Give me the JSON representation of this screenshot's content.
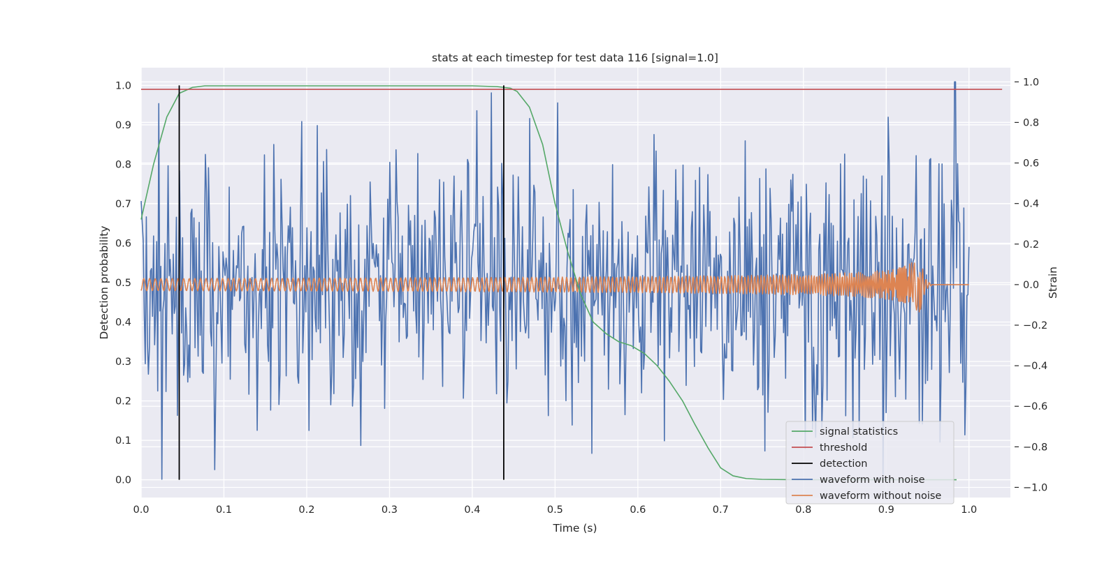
{
  "chart_data": {
    "type": "line",
    "title": "stats at each timestep for test data 116 [signal=1.0]",
    "xlabel": "Time (s)",
    "ylabel_left": "Detection probability",
    "ylabel_right": "Strain",
    "xlim": [
      0.0,
      1.05
    ],
    "ylim_left": [
      -0.045,
      1.045
    ],
    "ylim_right": [
      -1.05,
      1.07
    ],
    "xticks": [
      "0.0",
      "0.1",
      "0.2",
      "0.3",
      "0.4",
      "0.5",
      "0.6",
      "0.7",
      "0.8",
      "0.9",
      "1.0"
    ],
    "yticks_left": [
      "0.0",
      "0.1",
      "0.2",
      "0.3",
      "0.4",
      "0.5",
      "0.6",
      "0.7",
      "0.8",
      "0.9",
      "1.0"
    ],
    "yticks_right": [
      "−1.0",
      "−0.8",
      "−0.6",
      "−0.4",
      "−0.2",
      "0.0",
      "0.2",
      "0.4",
      "0.6",
      "0.8",
      "1.0"
    ],
    "grid": true,
    "legend_position": "lower right",
    "series": [
      {
        "name": "signal statistics",
        "axis": "left",
        "color": "#55a868",
        "x": [
          0.0,
          0.015,
          0.031,
          0.046,
          0.062,
          0.077,
          0.1,
          0.2,
          0.3,
          0.4,
          0.43,
          0.446,
          0.454,
          0.469,
          0.485,
          0.5,
          0.515,
          0.531,
          0.546,
          0.562,
          0.577,
          0.592,
          0.608,
          0.623,
          0.638,
          0.654,
          0.669,
          0.685,
          0.7,
          0.715,
          0.731,
          0.75,
          0.8,
          0.9,
          0.985
        ],
        "y": [
          0.66,
          0.8,
          0.92,
          0.98,
          0.995,
          0.999,
          0.999,
          0.999,
          0.999,
          0.999,
          0.997,
          0.993,
          0.985,
          0.945,
          0.85,
          0.7,
          0.58,
          0.47,
          0.4,
          0.37,
          0.35,
          0.34,
          0.32,
          0.29,
          0.25,
          0.2,
          0.14,
          0.08,
          0.03,
          0.01,
          0.003,
          0.001,
          0.0,
          0.0,
          0.0
        ]
      },
      {
        "name": "threshold",
        "axis": "left",
        "color": "#c44e52",
        "x": [
          0.0,
          1.04
        ],
        "y": [
          0.99,
          0.99
        ]
      },
      {
        "name": "detection",
        "axis": "left",
        "color": "#000000",
        "segments": [
          {
            "x": 0.046,
            "y0": 0.0,
            "y1": 1.0
          },
          {
            "x": 0.438,
            "y0": 0.0,
            "y1": 1.0
          }
        ]
      },
      {
        "name": "waveform with noise",
        "axis": "right",
        "color": "#4c72b0",
        "x_start": 0.0,
        "x_end": 1.0,
        "n_points": 800,
        "seed": 116,
        "sigma": 0.32,
        "min": -0.96,
        "max": 1.0,
        "peak_x": 0.983,
        "peak_y": 1.0
      },
      {
        "name": "waveform without noise",
        "axis": "right",
        "color": "#dd8452",
        "x_start": 0.0,
        "x_end": 1.0,
        "n_points": 1200,
        "merger_time": 0.94,
        "amp_start": 0.03,
        "amp_max": 0.22,
        "ringdown_end": 0.955
      }
    ]
  }
}
